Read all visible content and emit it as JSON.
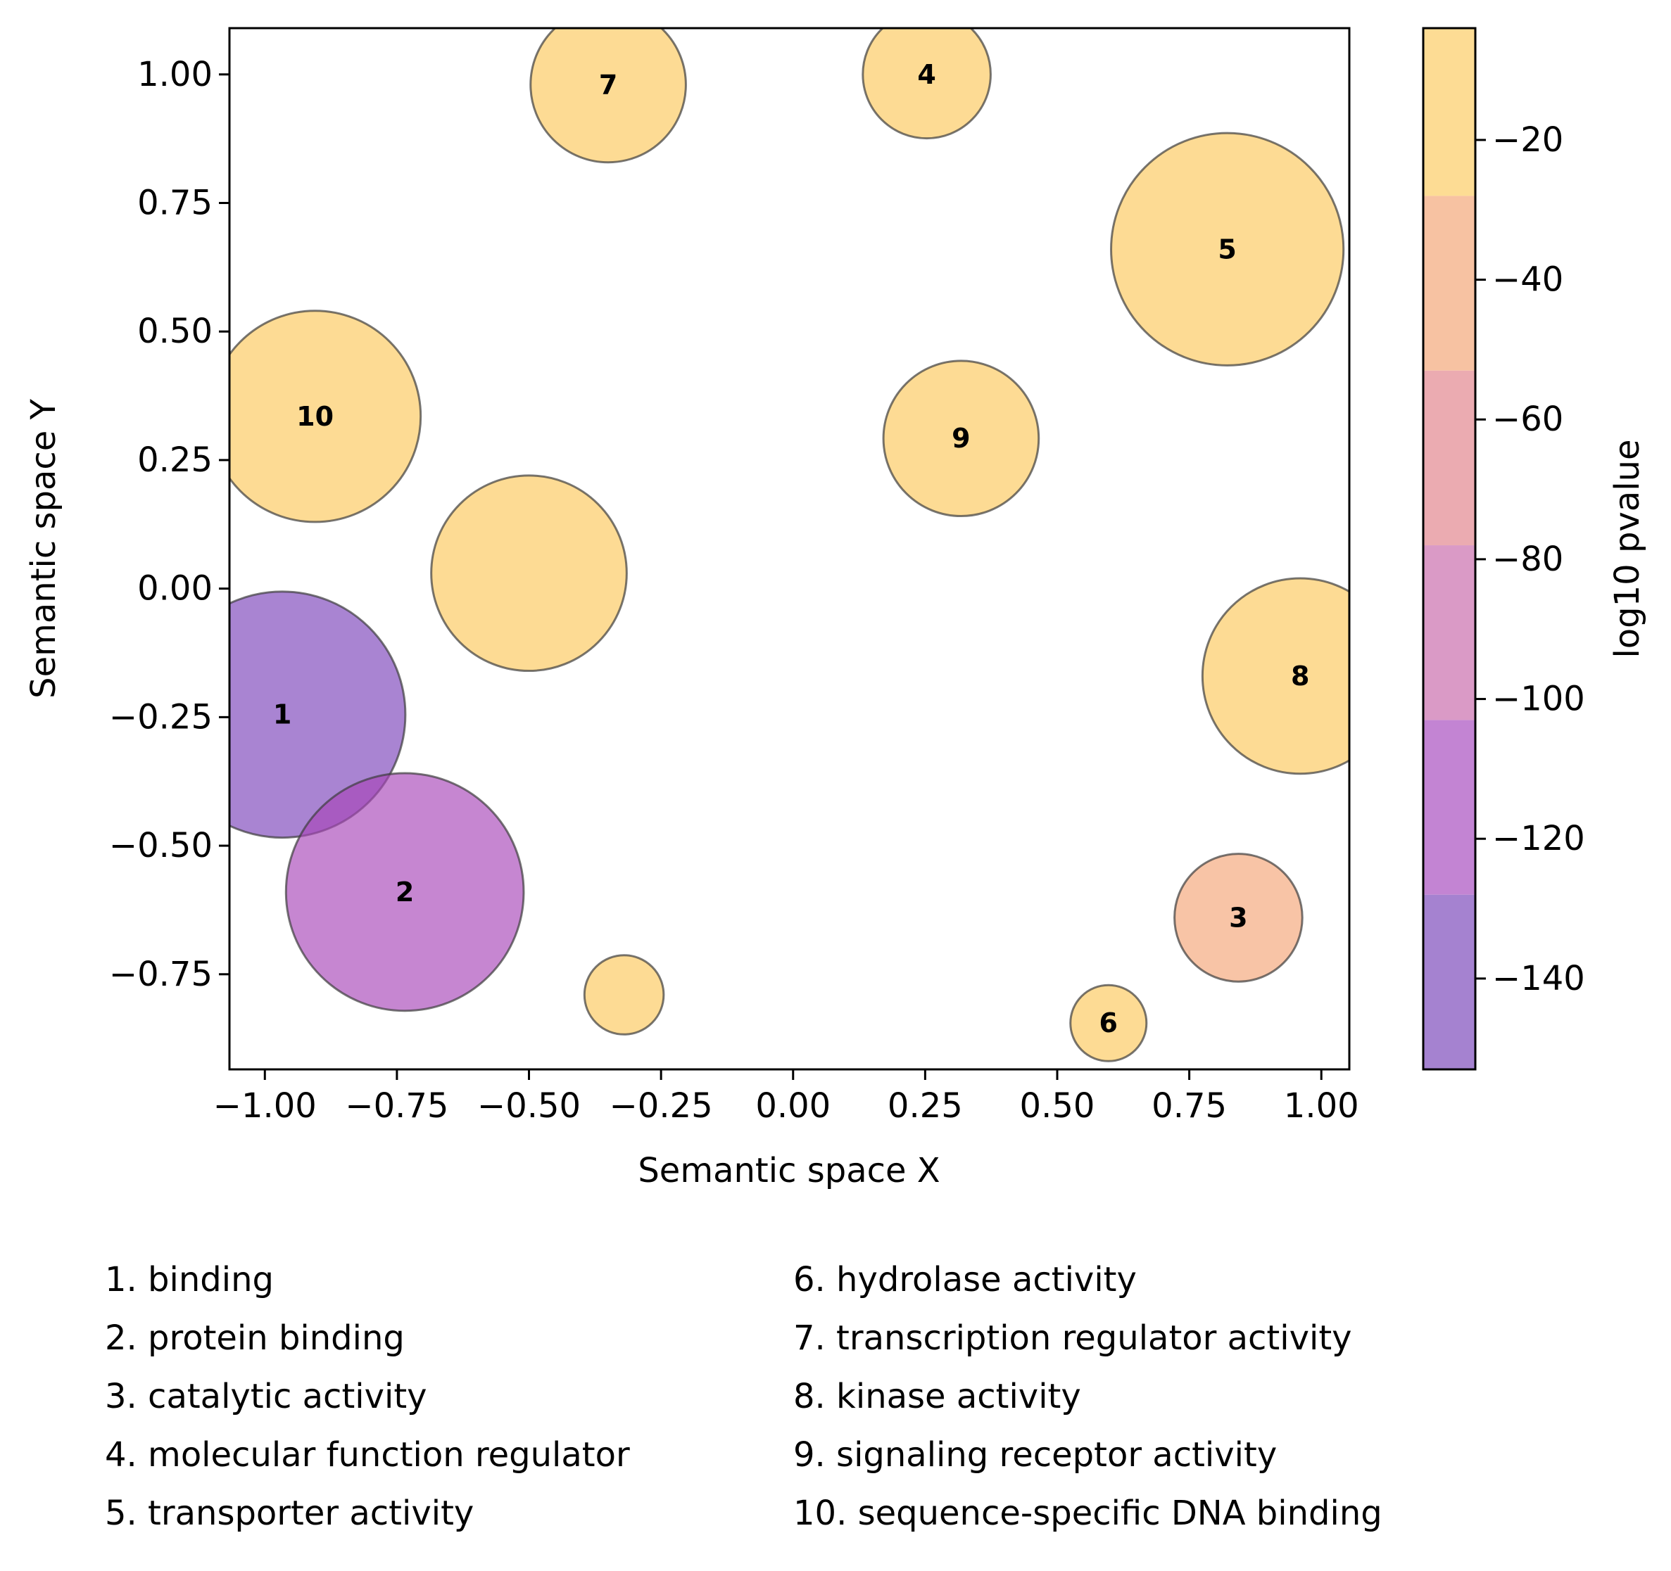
{
  "chart_data": {
    "type": "scatter",
    "xlabel": "Semantic space X",
    "ylabel": "Semantic space Y",
    "xlim": [
      -1.067,
      1.053
    ],
    "ylim": [
      -0.935,
      1.09
    ],
    "x_ticks": [
      "−1.00",
      "−0.75",
      "−0.50",
      "−0.25",
      "0.00",
      "0.25",
      "0.50",
      "0.75",
      "1.00"
    ],
    "x_tick_values": [
      -1.0,
      -0.75,
      -0.5,
      -0.25,
      0.0,
      0.25,
      0.5,
      0.75,
      1.0
    ],
    "y_ticks": [
      "−0.75",
      "−0.50",
      "−0.25",
      "0.00",
      "0.25",
      "0.50",
      "0.75",
      "1.00"
    ],
    "y_tick_values": [
      -0.75,
      -0.5,
      -0.25,
      0.0,
      0.25,
      0.5,
      0.75,
      1.0
    ],
    "grid": false,
    "colorbar": {
      "label": "log10 pvalue",
      "range": [
        -153,
        -4
      ],
      "ticks": [
        "−20",
        "−40",
        "−60",
        "−80",
        "−100",
        "−120",
        "−140"
      ],
      "tick_values": [
        -20,
        -40,
        -60,
        -80,
        -100,
        -120,
        -140
      ],
      "bands": [
        {
          "from": -153,
          "to": -128,
          "color": "#a582d0"
        },
        {
          "from": -128,
          "to": -103,
          "color": "#c384d3"
        },
        {
          "from": -103,
          "to": -78,
          "color": "#da9ac6"
        },
        {
          "from": -78,
          "to": -53,
          "color": "#ebabb1"
        },
        {
          "from": -53,
          "to": -28,
          "color": "#f7c2a2"
        },
        {
          "from": -28,
          "to": -4,
          "color": "#fddc94"
        }
      ]
    },
    "points": [
      {
        "label": "1",
        "x": -0.967,
        "y": -0.245,
        "radius": 0.233,
        "log10_pvalue": -145,
        "color": "#7b42ba"
      },
      {
        "label": "2",
        "x": -0.735,
        "y": -0.59,
        "radius": 0.225,
        "log10_pvalue": -118,
        "color": "#a845b8"
      },
      {
        "label": "3",
        "x": 0.843,
        "y": -0.64,
        "radius": 0.121,
        "log10_pvalue": -40,
        "color": "#f4a476"
      },
      {
        "label": "4",
        "x": 0.253,
        "y": 1.0,
        "radius": 0.121,
        "log10_pvalue": -10,
        "color": "#fcc75b"
      },
      {
        "label": "5",
        "x": 0.822,
        "y": 0.66,
        "radius": 0.22,
        "log10_pvalue": -10,
        "color": "#fcc75b"
      },
      {
        "label": "6",
        "x": 0.597,
        "y": -0.845,
        "radius": 0.072,
        "log10_pvalue": -10,
        "color": "#fcc75b"
      },
      {
        "label": "7",
        "x": -0.35,
        "y": 0.98,
        "radius": 0.147,
        "log10_pvalue": -10,
        "color": "#fcc75b"
      },
      {
        "label": "8",
        "x": 0.96,
        "y": -0.17,
        "radius": 0.185,
        "log10_pvalue": -10,
        "color": "#fcc75b"
      },
      {
        "label": "9",
        "x": 0.318,
        "y": 0.292,
        "radius": 0.147,
        "log10_pvalue": -10,
        "color": "#fcc75b"
      },
      {
        "label": "10",
        "x": -0.905,
        "y": 0.335,
        "radius": 0.2,
        "log10_pvalue": -10,
        "color": "#fcc75b"
      },
      {
        "label": "",
        "x": -0.5,
        "y": 0.03,
        "radius": 0.185,
        "log10_pvalue": -10,
        "color": "#fcc75b"
      },
      {
        "label": "",
        "x": -0.32,
        "y": -0.79,
        "radius": 0.075,
        "log10_pvalue": -10,
        "color": "#fcc75b"
      }
    ],
    "legend_entries": [
      "1. binding",
      "2. protein binding",
      "3. catalytic activity",
      "4. molecular function regulator",
      "5. transporter activity",
      "6. hydrolase activity",
      "7. transcription regulator activity",
      "8. kinase activity",
      "9. signaling receptor activity",
      "10. sequence-specific DNA binding"
    ]
  }
}
